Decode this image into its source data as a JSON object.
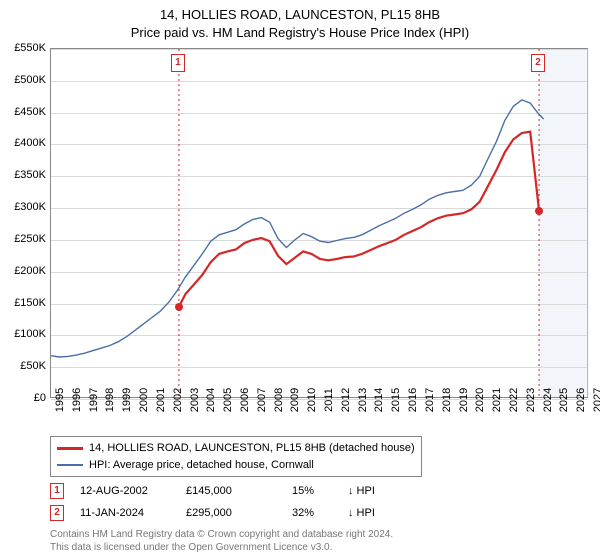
{
  "title": {
    "line1": "14, HOLLIES ROAD, LAUNCESTON, PL15 8HB",
    "line2": "Price paid vs. HM Land Registry's House Price Index (HPI)"
  },
  "chart": {
    "type": "line",
    "x_min": 1995,
    "x_max": 2027,
    "y_min": 0,
    "y_max": 550000,
    "y_ticks": [
      0,
      50000,
      100000,
      150000,
      200000,
      250000,
      300000,
      350000,
      400000,
      450000,
      500000,
      550000
    ],
    "y_tick_labels": [
      "£0",
      "£50K",
      "£100K",
      "£150K",
      "£200K",
      "£250K",
      "£300K",
      "£350K",
      "£400K",
      "£450K",
      "£500K",
      "£550K"
    ],
    "x_ticks": [
      1995,
      1996,
      1997,
      1998,
      1999,
      2000,
      2001,
      2002,
      2003,
      2004,
      2005,
      2006,
      2007,
      2008,
      2009,
      2010,
      2011,
      2012,
      2013,
      2014,
      2015,
      2016,
      2017,
      2018,
      2019,
      2020,
      2021,
      2022,
      2023,
      2024,
      2025,
      2026,
      2027
    ],
    "grid_color": "#d9d9d9",
    "border_color": "#888888",
    "series_color_1": "#d62728",
    "series_color_2": "#4a6fa5",
    "line_width_1": 2.2,
    "line_width_2": 1.4,
    "marker_fill": "#d62728",
    "highlight_band_color": "#e6ecf5",
    "series1": [
      [
        2002.61,
        145000
      ],
      [
        2003,
        165000
      ],
      [
        2003.5,
        180000
      ],
      [
        2004,
        195000
      ],
      [
        2004.5,
        215000
      ],
      [
        2005,
        228000
      ],
      [
        2005.5,
        232000
      ],
      [
        2006,
        235000
      ],
      [
        2006.5,
        245000
      ],
      [
        2007,
        250000
      ],
      [
        2007.5,
        253000
      ],
      [
        2008,
        248000
      ],
      [
        2008.5,
        225000
      ],
      [
        2009,
        212000
      ],
      [
        2009.5,
        222000
      ],
      [
        2010,
        232000
      ],
      [
        2010.5,
        228000
      ],
      [
        2011,
        220000
      ],
      [
        2011.5,
        218000
      ],
      [
        2012,
        220000
      ],
      [
        2012.5,
        223000
      ],
      [
        2013,
        224000
      ],
      [
        2013.5,
        228000
      ],
      [
        2014,
        234000
      ],
      [
        2014.5,
        240000
      ],
      [
        2015,
        245000
      ],
      [
        2015.5,
        250000
      ],
      [
        2016,
        258000
      ],
      [
        2016.5,
        264000
      ],
      [
        2017,
        270000
      ],
      [
        2017.5,
        278000
      ],
      [
        2018,
        284000
      ],
      [
        2018.5,
        288000
      ],
      [
        2019,
        290000
      ],
      [
        2019.5,
        292000
      ],
      [
        2020,
        298000
      ],
      [
        2020.5,
        310000
      ],
      [
        2021,
        335000
      ],
      [
        2021.5,
        360000
      ],
      [
        2022,
        388000
      ],
      [
        2022.5,
        408000
      ],
      [
        2023,
        418000
      ],
      [
        2023.5,
        420000
      ],
      [
        2024.03,
        295000
      ]
    ],
    "series2": [
      [
        1995,
        68000
      ],
      [
        1995.5,
        66000
      ],
      [
        1996,
        67000
      ],
      [
        1996.5,
        69000
      ],
      [
        1997,
        72000
      ],
      [
        1997.5,
        76000
      ],
      [
        1998,
        80000
      ],
      [
        1998.5,
        84000
      ],
      [
        1999,
        90000
      ],
      [
        1999.5,
        98000
      ],
      [
        2000,
        108000
      ],
      [
        2000.5,
        118000
      ],
      [
        2001,
        128000
      ],
      [
        2001.5,
        138000
      ],
      [
        2002,
        152000
      ],
      [
        2002.5,
        170000
      ],
      [
        2003,
        192000
      ],
      [
        2003.5,
        210000
      ],
      [
        2004,
        228000
      ],
      [
        2004.5,
        248000
      ],
      [
        2005,
        258000
      ],
      [
        2005.5,
        262000
      ],
      [
        2006,
        266000
      ],
      [
        2006.5,
        275000
      ],
      [
        2007,
        282000
      ],
      [
        2007.5,
        285000
      ],
      [
        2008,
        278000
      ],
      [
        2008.5,
        252000
      ],
      [
        2009,
        238000
      ],
      [
        2009.5,
        250000
      ],
      [
        2010,
        260000
      ],
      [
        2010.5,
        255000
      ],
      [
        2011,
        248000
      ],
      [
        2011.5,
        246000
      ],
      [
        2012,
        249000
      ],
      [
        2012.5,
        252000
      ],
      [
        2013,
        254000
      ],
      [
        2013.5,
        258000
      ],
      [
        2014,
        265000
      ],
      [
        2014.5,
        272000
      ],
      [
        2015,
        278000
      ],
      [
        2015.5,
        284000
      ],
      [
        2016,
        292000
      ],
      [
        2016.5,
        298000
      ],
      [
        2017,
        305000
      ],
      [
        2017.5,
        314000
      ],
      [
        2018,
        320000
      ],
      [
        2018.5,
        324000
      ],
      [
        2019,
        326000
      ],
      [
        2019.5,
        328000
      ],
      [
        2020,
        336000
      ],
      [
        2020.5,
        350000
      ],
      [
        2021,
        378000
      ],
      [
        2021.5,
        405000
      ],
      [
        2022,
        438000
      ],
      [
        2022.5,
        460000
      ],
      [
        2023,
        470000
      ],
      [
        2023.5,
        465000
      ],
      [
        2024,
        448000
      ],
      [
        2024.3,
        440000
      ]
    ],
    "markers": [
      {
        "n": "1",
        "x": 2002.61,
        "y": 145000
      },
      {
        "n": "2",
        "x": 2024.03,
        "y": 295000
      }
    ]
  },
  "legend": {
    "item1_color": "#d62728",
    "item1_label": "14, HOLLIES ROAD, LAUNCESTON, PL15 8HB (detached house)",
    "item2_color": "#4a6fa5",
    "item2_label": "HPI: Average price, detached house, Cornwall"
  },
  "transactions": [
    {
      "n": "1",
      "date": "12-AUG-2002",
      "price": "£145,000",
      "pct": "15%",
      "rel": "↓ HPI",
      "color": "#d62728"
    },
    {
      "n": "2",
      "date": "11-JAN-2024",
      "price": "£295,000",
      "pct": "32%",
      "rel": "↓ HPI",
      "color": "#d62728"
    }
  ],
  "attribution": {
    "line1": "Contains HM Land Registry data © Crown copyright and database right 2024.",
    "line2": "This data is licensed under the Open Government Licence v3.0."
  }
}
